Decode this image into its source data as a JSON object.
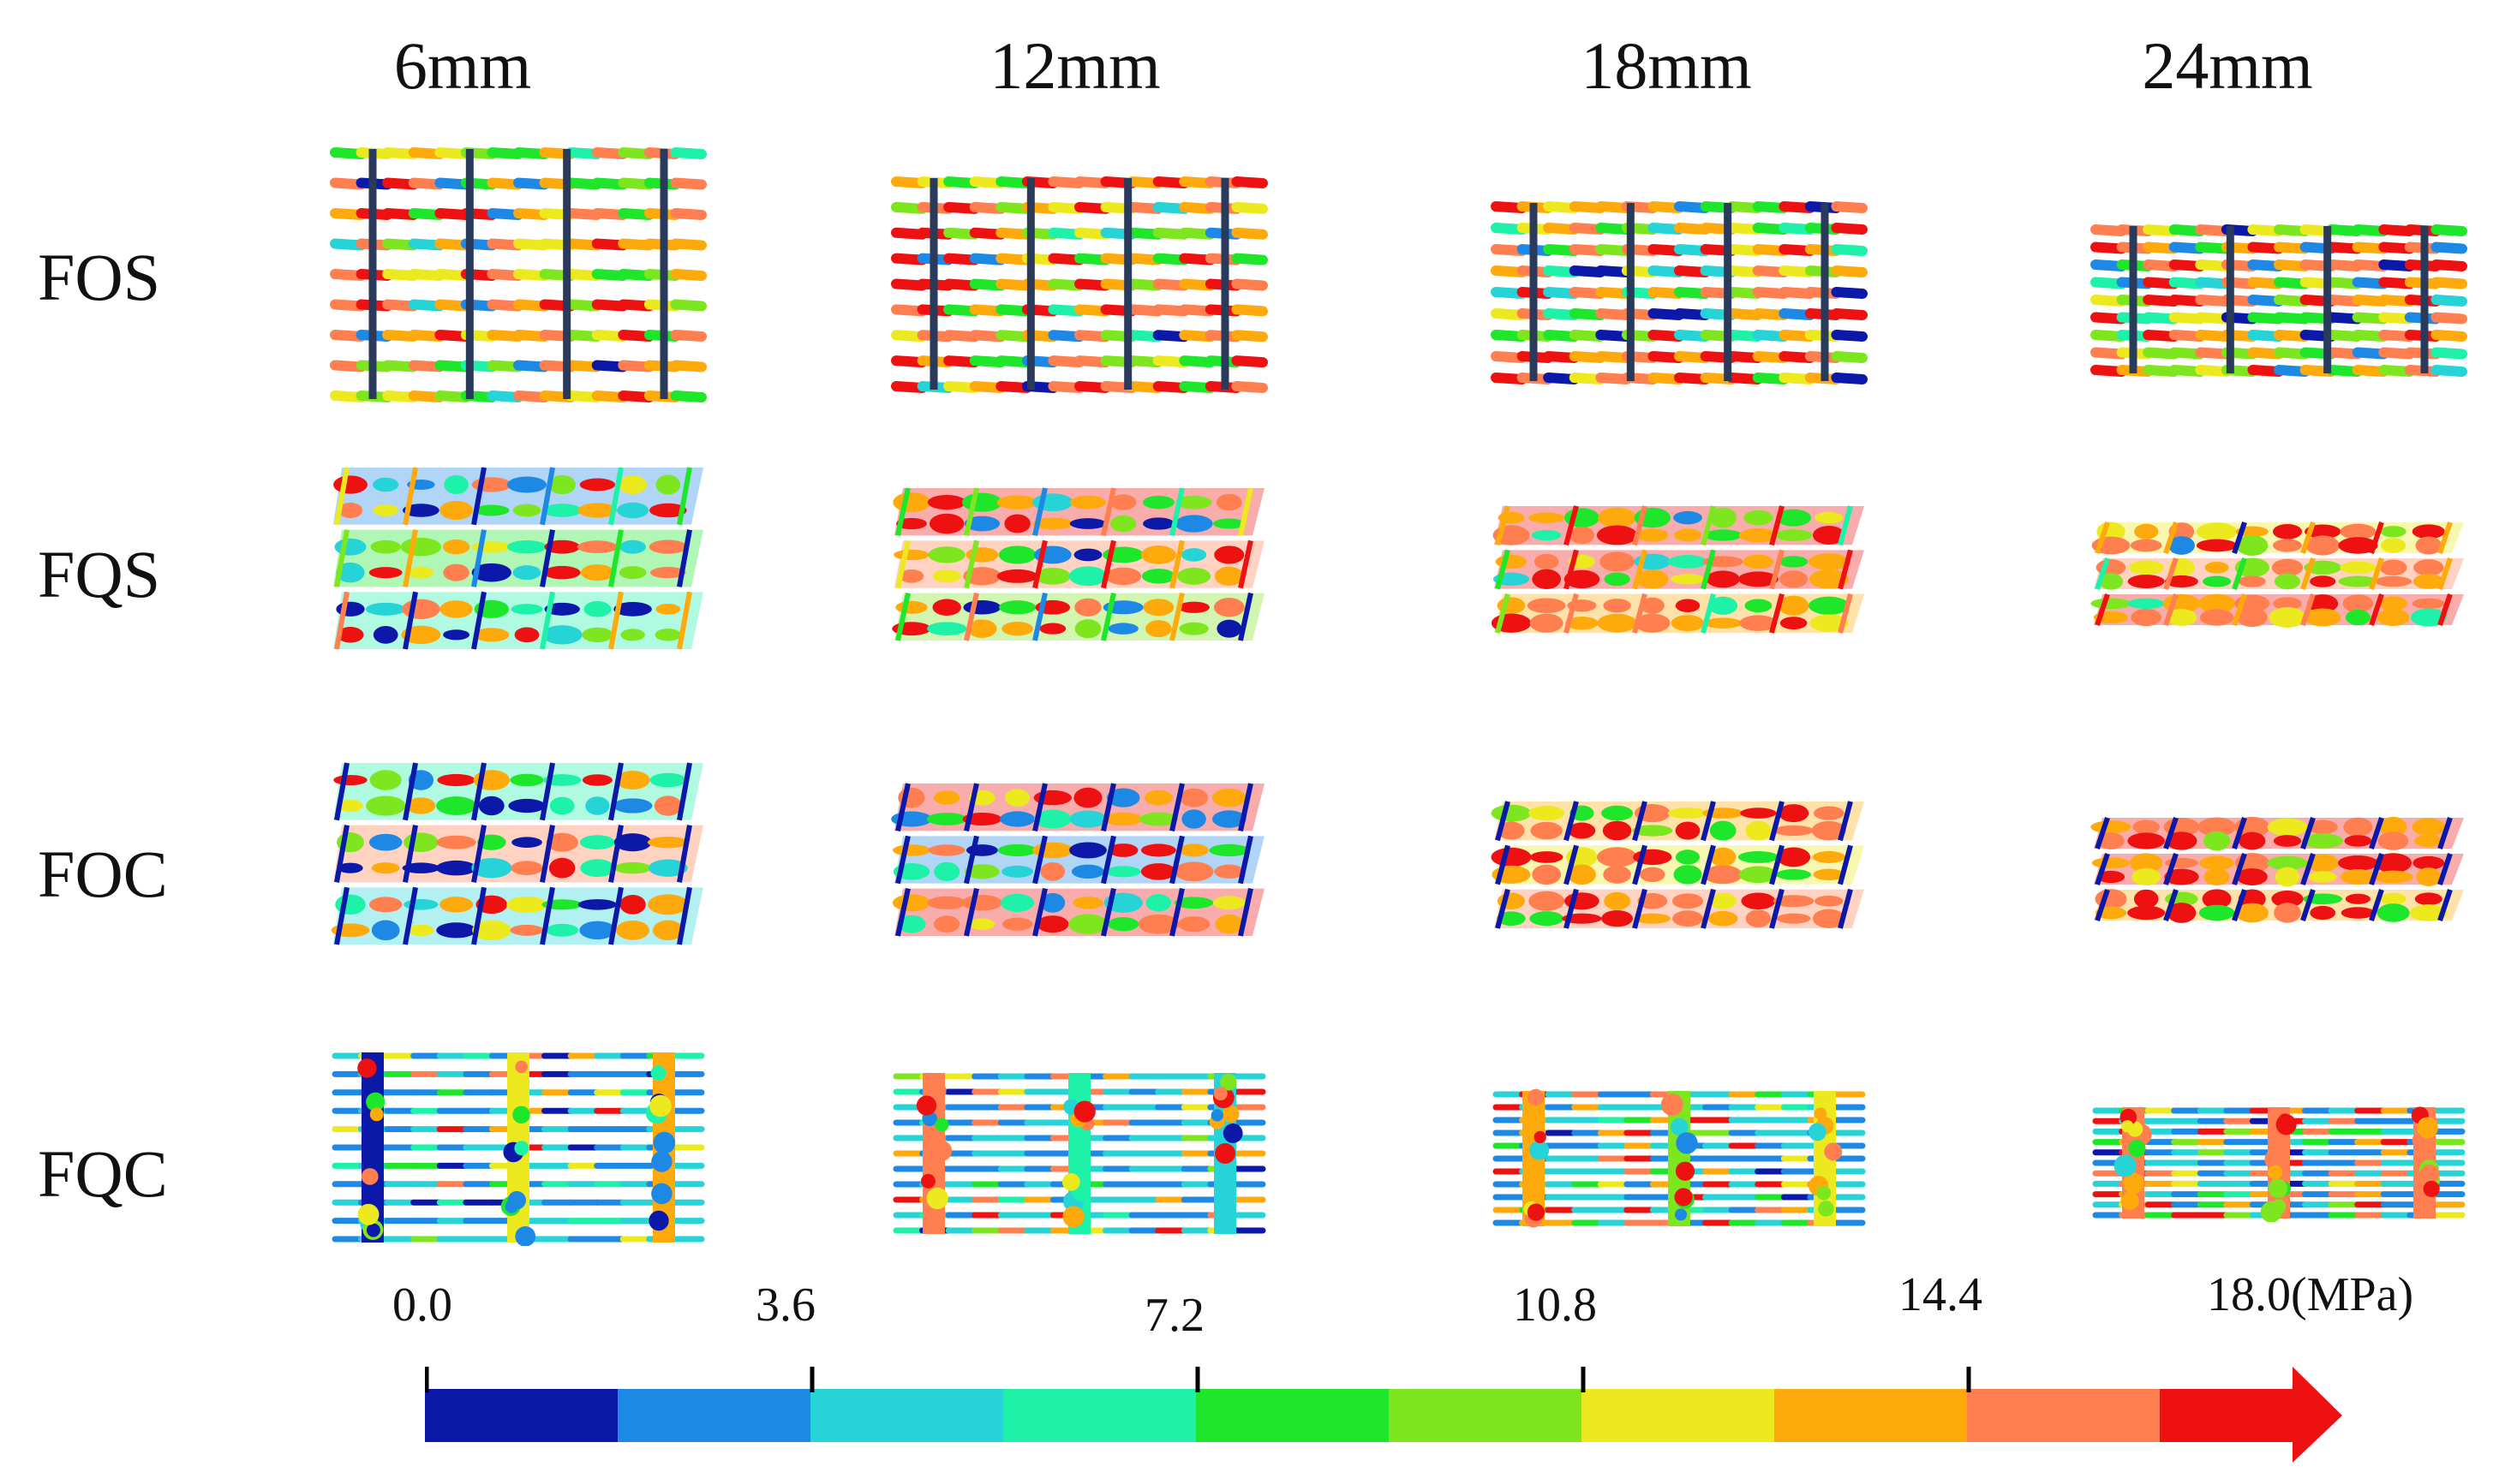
{
  "columns": [
    "6mm",
    "12mm",
    "18mm",
    "24mm"
  ],
  "rows": [
    "FOS",
    "FQS",
    "FOC",
    "FQC"
  ],
  "colorbar": {
    "tick_labels": [
      "0.0",
      "3.6",
      "7.2",
      "10.8",
      "14.4",
      "18.0(MPa)"
    ],
    "colors": [
      "#0b18a8",
      "#1e88e5",
      "#26d3d6",
      "#1ef2a8",
      "#1ee62b",
      "#7de61e",
      "#ece91e",
      "#ffaa0c",
      "#ff7f50",
      "#ee1111"
    ]
  }
}
